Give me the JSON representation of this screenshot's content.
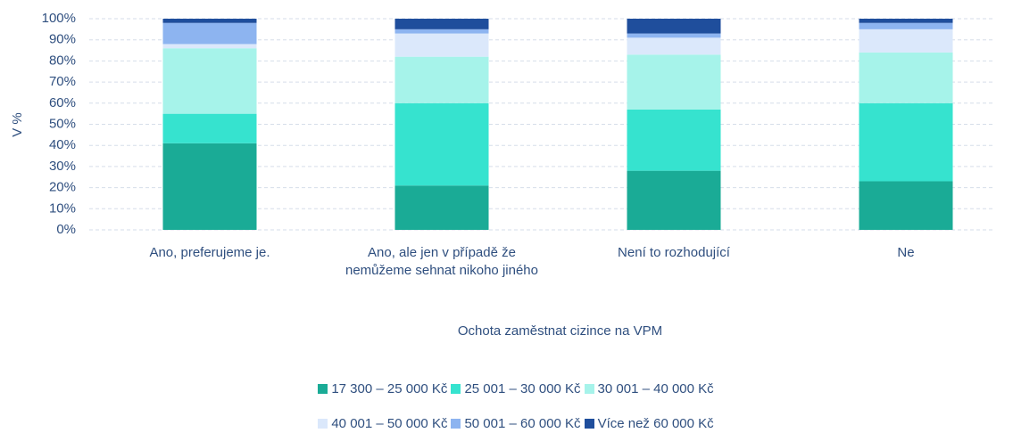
{
  "chart_data": {
    "type": "stacked_bar",
    "categories": [
      "Ano, preferujeme je.",
      "Ano, ale jen v případě že nemůžeme sehnat nikoho jiného",
      "Není to rozhodující",
      "Ne"
    ],
    "series": [
      {
        "name": "17 300 – 25 000 Kč",
        "color": "#1aab96",
        "values": [
          41,
          21,
          28,
          23
        ]
      },
      {
        "name": "25 001 – 30 000 Kč",
        "color": "#36e3cf",
        "values": [
          14,
          39,
          29,
          37
        ]
      },
      {
        "name": "30 001 – 40 000 Kč",
        "color": "#a6f3ea",
        "values": [
          31,
          22,
          26,
          24
        ]
      },
      {
        "name": "40 001 – 50 000 Kč",
        "color": "#dbe8fb",
        "values": [
          2,
          11,
          8,
          11
        ]
      },
      {
        "name": "50 001 – 60 000 Kč",
        "color": "#8db4f0",
        "values": [
          10,
          2,
          2,
          3
        ]
      },
      {
        "name": "Více než 60 000 Kč",
        "color": "#1f4e9c",
        "values": [
          2,
          5,
          7,
          2
        ]
      }
    ],
    "y_label": "V %",
    "x_label": "Ochota zaměstnat cizince na VPM",
    "ylim": [
      0,
      100
    ],
    "yticks": [
      {
        "value": 0,
        "label": "0%"
      },
      {
        "value": 10,
        "label": "10%"
      },
      {
        "value": 20,
        "label": "20%"
      },
      {
        "value": 30,
        "label": "30%"
      },
      {
        "value": 40,
        "label": "40%"
      },
      {
        "value": 50,
        "label": "50%"
      },
      {
        "value": 60,
        "label": "60%"
      },
      {
        "value": 70,
        "label": "70%"
      },
      {
        "value": 80,
        "label": "80%"
      },
      {
        "value": 90,
        "label": "90%"
      },
      {
        "value": 100,
        "label": "100%"
      }
    ],
    "grid": true
  }
}
